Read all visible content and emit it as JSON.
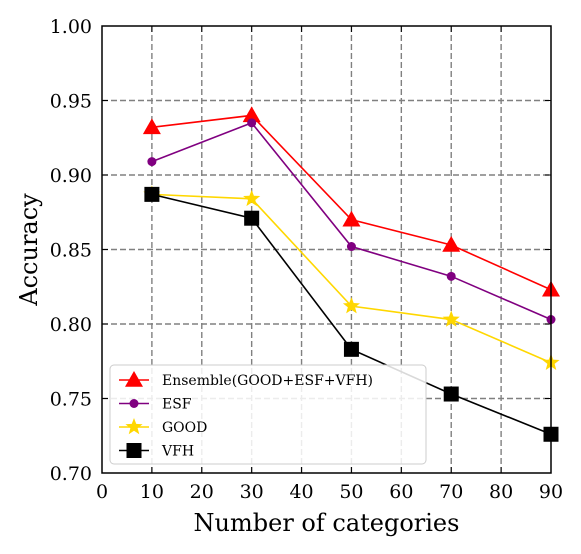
{
  "chart_data": {
    "type": "line",
    "title": "",
    "xlabel": "Number of categories",
    "ylabel": "Accuracy",
    "xlim": [
      0,
      90
    ],
    "ylim": [
      0.7,
      1.0
    ],
    "x": [
      10,
      30,
      50,
      70,
      90
    ],
    "xticks": [
      "0",
      "10",
      "20",
      "30",
      "40",
      "50",
      "60",
      "70",
      "80",
      "90"
    ],
    "yticks": [
      "0.70",
      "0.75",
      "0.80",
      "0.85",
      "0.90",
      "0.95",
      "1.00"
    ],
    "grid": true,
    "legend_position": "lower-left",
    "series": [
      {
        "name": "Ensemble(GOOD+ESF+VFH)",
        "color": "#ff0000",
        "marker": "triangle",
        "values": [
          0.932,
          0.94,
          0.87,
          0.853,
          0.823
        ]
      },
      {
        "name": "ESF",
        "color": "#800080",
        "marker": "circle",
        "values": [
          0.909,
          0.935,
          0.852,
          0.832,
          0.803
        ]
      },
      {
        "name": "GOOD",
        "color": "#ffd700",
        "marker": "star",
        "values": [
          0.887,
          0.884,
          0.812,
          0.803,
          0.774
        ]
      },
      {
        "name": "VFH",
        "color": "#000000",
        "marker": "square",
        "values": [
          0.887,
          0.871,
          0.783,
          0.753,
          0.726
        ]
      }
    ]
  }
}
